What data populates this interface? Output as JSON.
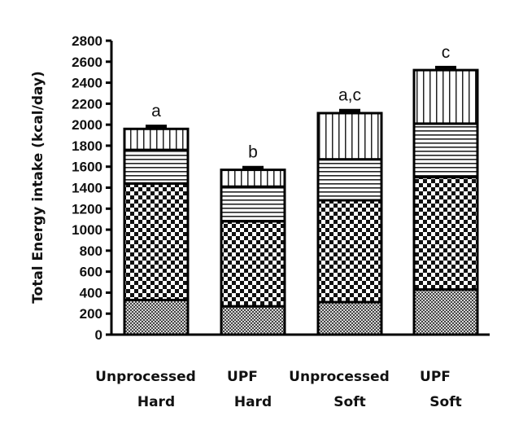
{
  "chart_data": {
    "type": "bar",
    "stacked": true,
    "ylabel": "Total Energy intake (kcal/day)",
    "xlabel": "",
    "ylim": [
      0,
      2800
    ],
    "yticks": [
      0,
      200,
      400,
      600,
      800,
      1000,
      1200,
      1400,
      1600,
      1800,
      2000,
      2200,
      2400,
      2600,
      2800
    ],
    "grid": false,
    "categories": [
      [
        "Unprocessed",
        "Hard"
      ],
      [
        "UPF",
        "Hard"
      ],
      [
        "Unprocessed",
        "Soft"
      ],
      [
        "UPF",
        "Soft"
      ]
    ],
    "significance_labels": [
      "a",
      "b",
      "a,c",
      "c"
    ],
    "series": [
      {
        "pattern": "dense-crosshatch",
        "values": [
          330,
          270,
          310,
          430
        ],
        "errors": [
          25,
          22,
          22,
          22
        ]
      },
      {
        "pattern": "checkerboard",
        "values": [
          1110,
          810,
          970,
          1070
        ],
        "errors": [
          45,
          50,
          45,
          55
        ]
      },
      {
        "pattern": "horizontal-lines",
        "values": [
          320,
          330,
          390,
          510
        ],
        "errors": [
          25,
          25,
          25,
          22
        ]
      },
      {
        "pattern": "vertical-lines",
        "values": [
          200,
          160,
          440,
          510
        ],
        "errors": [
          25,
          22,
          25,
          25
        ]
      }
    ]
  }
}
